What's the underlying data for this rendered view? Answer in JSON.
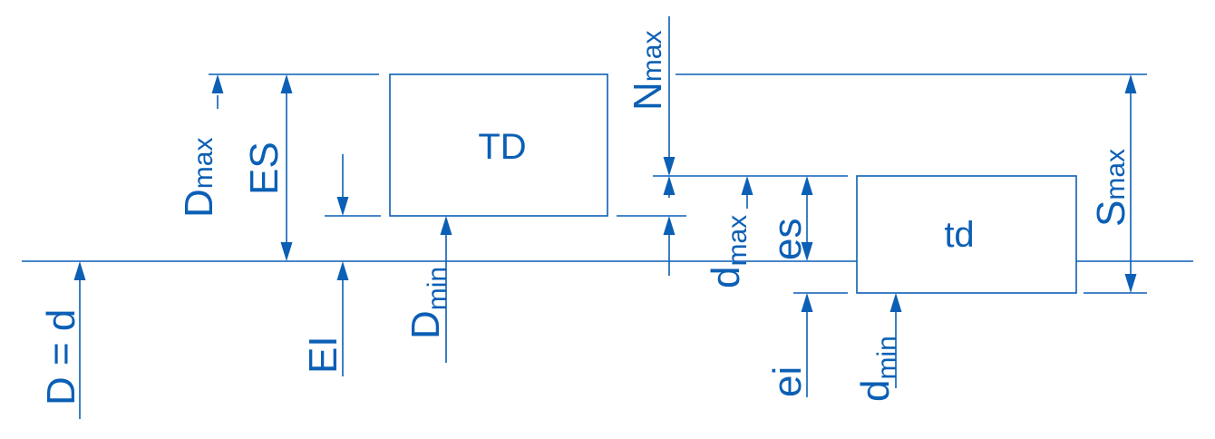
{
  "labels": {
    "nominal": "D = d",
    "EI": "EI",
    "ES": "ES",
    "Dmax": {
      "base": "D",
      "sub": "max"
    },
    "Dmin": {
      "base": "D",
      "sub": "min"
    },
    "TD": "TD",
    "Nmax": {
      "base": "N",
      "sub": "max"
    },
    "dmax": {
      "base": "d",
      "sub": "max"
    },
    "es": "es",
    "ei": "ei",
    "td": "td",
    "dmin": {
      "base": "d",
      "sub": "min"
    },
    "Smax": {
      "base": "S",
      "sub": "max"
    }
  },
  "colors": {
    "line": "#0b5fb5",
    "background": "#ffffff"
  }
}
